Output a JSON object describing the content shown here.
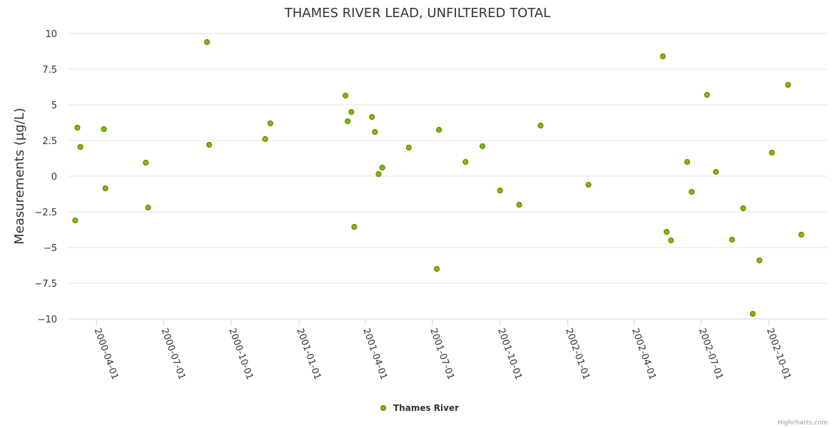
{
  "colors": {
    "point_fill": "#8ab800",
    "point_stroke": "#5a8a00",
    "grid": "#e6e6e6",
    "axis": "#ccd6eb"
  },
  "credits": "Highcharts.com",
  "chart_data": {
    "type": "scatter",
    "title": "THAMES RIVER LEAD, UNFILTERED TOTAL",
    "ylabel": "Measurements (μg/L)",
    "xlabel": "",
    "ylim": [
      -10,
      10
    ],
    "yticks": [
      -10,
      -7.5,
      -5,
      -2.5,
      0,
      2.5,
      5,
      7.5,
      10
    ],
    "ytick_labels": [
      "−10",
      "−7.5",
      "−5",
      "−2.5",
      "0",
      "2.5",
      "5",
      "7.5",
      "10"
    ],
    "xlim": [
      "2000-02-22",
      "2002-12-20"
    ],
    "xticks": [
      "2000-04-01",
      "2000-07-01",
      "2000-10-01",
      "2001-01-01",
      "2001-04-01",
      "2001-07-01",
      "2001-10-01",
      "2002-01-01",
      "2002-04-01",
      "2002-07-01",
      "2002-10-01"
    ],
    "grid": true,
    "legend_position": "bottom-center",
    "series": [
      {
        "name": "Thames River",
        "points": [
          {
            "x": "2000-03-03",
            "y": -3.1
          },
          {
            "x": "2000-03-06",
            "y": 3.4
          },
          {
            "x": "2000-03-10",
            "y": 2.05
          },
          {
            "x": "2000-04-11",
            "y": 3.3
          },
          {
            "x": "2000-04-13",
            "y": -0.85
          },
          {
            "x": "2000-06-07",
            "y": 0.95
          },
          {
            "x": "2000-06-10",
            "y": -2.2
          },
          {
            "x": "2000-08-29",
            "y": 9.4
          },
          {
            "x": "2000-09-01",
            "y": 2.2
          },
          {
            "x": "2000-11-16",
            "y": 2.6
          },
          {
            "x": "2000-11-23",
            "y": 3.7
          },
          {
            "x": "2001-03-05",
            "y": 5.65
          },
          {
            "x": "2001-03-08",
            "y": 3.85
          },
          {
            "x": "2001-03-13",
            "y": 4.5
          },
          {
            "x": "2001-03-17",
            "y": -3.55
          },
          {
            "x": "2001-04-10",
            "y": 4.15
          },
          {
            "x": "2001-04-14",
            "y": 3.1
          },
          {
            "x": "2001-04-19",
            "y": 0.15
          },
          {
            "x": "2001-04-24",
            "y": 0.6
          },
          {
            "x": "2001-05-30",
            "y": 2.0
          },
          {
            "x": "2001-07-07",
            "y": -6.5
          },
          {
            "x": "2001-07-10",
            "y": 3.25
          },
          {
            "x": "2001-08-15",
            "y": 1.0
          },
          {
            "x": "2001-09-07",
            "y": 2.1
          },
          {
            "x": "2001-10-01",
            "y": -1.0
          },
          {
            "x": "2001-10-27",
            "y": -2.0
          },
          {
            "x": "2001-11-25",
            "y": 3.55
          },
          {
            "x": "2002-01-29",
            "y": -0.6
          },
          {
            "x": "2002-05-10",
            "y": 8.4
          },
          {
            "x": "2002-05-15",
            "y": -3.9
          },
          {
            "x": "2002-05-21",
            "y": -4.5
          },
          {
            "x": "2002-06-12",
            "y": 1.0
          },
          {
            "x": "2002-06-18",
            "y": -1.1
          },
          {
            "x": "2002-07-09",
            "y": 5.7
          },
          {
            "x": "2002-07-21",
            "y": 0.3
          },
          {
            "x": "2002-08-12",
            "y": -4.45
          },
          {
            "x": "2002-08-27",
            "y": -2.25
          },
          {
            "x": "2002-09-09",
            "y": -9.65
          },
          {
            "x": "2002-09-18",
            "y": -5.9
          },
          {
            "x": "2002-10-05",
            "y": 1.65
          },
          {
            "x": "2002-10-27",
            "y": 6.4
          },
          {
            "x": "2002-11-14",
            "y": -4.1
          }
        ]
      }
    ]
  }
}
